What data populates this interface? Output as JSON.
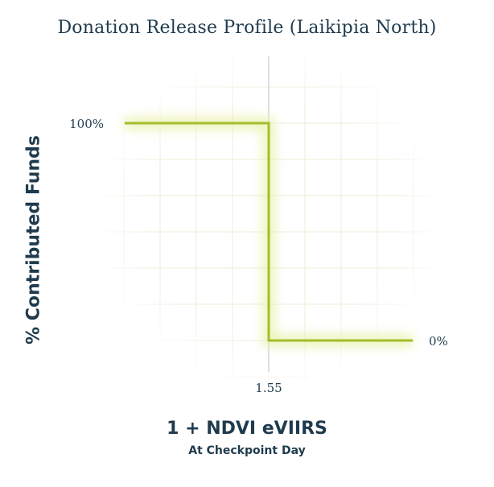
{
  "chart_data": {
    "type": "line",
    "title": "Donation Release Profile (Laikipia North)",
    "ylabel": "% Contributed Funds",
    "xlabel": "1 + NDVI eVIIRS",
    "xsublabel": "At Checkpoint Day",
    "threshold_x": 1.55,
    "series": [
      {
        "x": [
          1.45,
          1.55,
          1.55,
          1.65
        ],
        "y": [
          100,
          100,
          0,
          0
        ]
      }
    ],
    "x_ticks": [
      {
        "value": 1.55,
        "label": "1.55"
      }
    ],
    "y_ticks": [
      {
        "value": 100,
        "label": "100%"
      },
      {
        "value": 0,
        "label": "0%"
      }
    ],
    "xlim": [
      1.45,
      1.65
    ],
    "ylim": [
      0,
      100
    ],
    "grid": true,
    "colors": {
      "line": "#a4bd2c",
      "glow": "#e8f0a6",
      "grid": "#ececd9",
      "threshold": "#b7c3c9",
      "text": "#1f3b4d"
    }
  }
}
